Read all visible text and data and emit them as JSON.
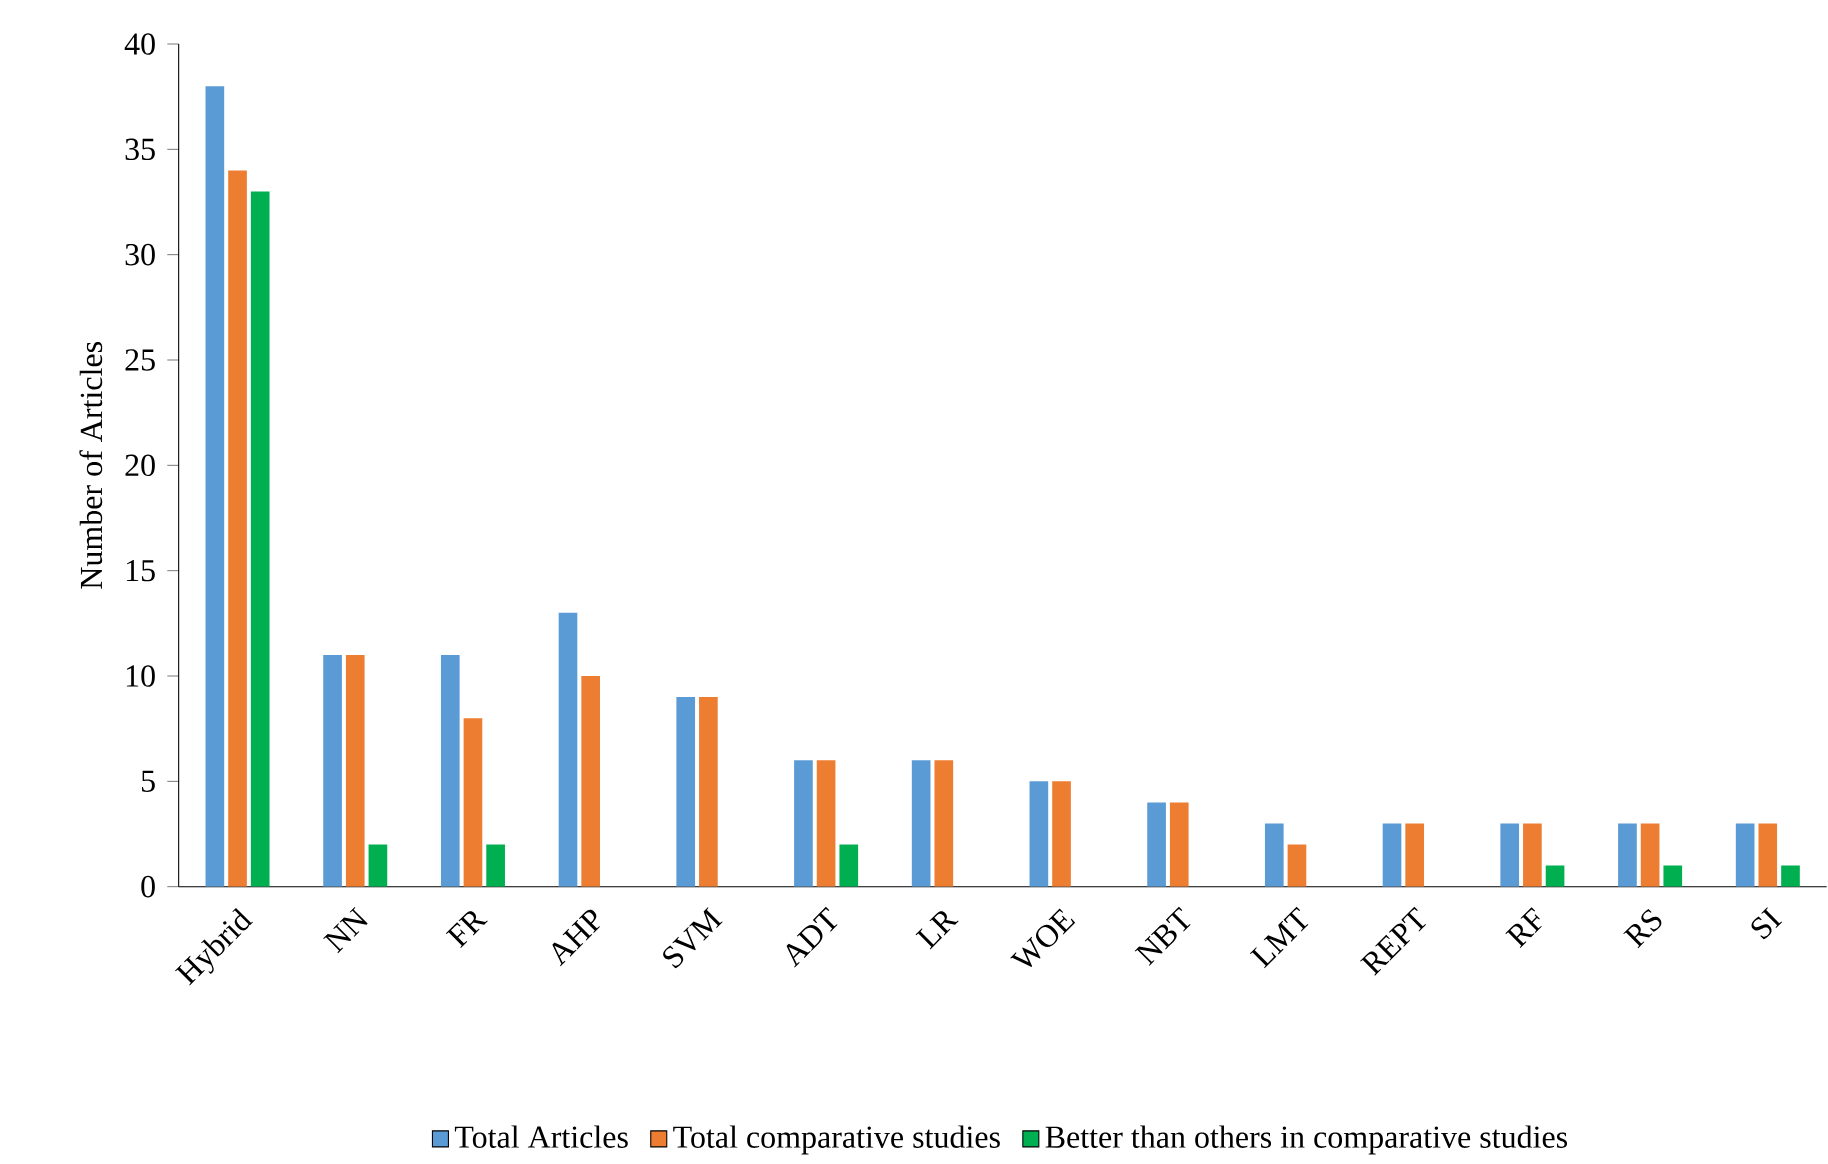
{
  "chart_data": {
    "type": "bar",
    "ylabel": "Number of Articles",
    "categories": [
      "Hybrid",
      "NN",
      "FR",
      "AHP",
      "SVM",
      "ADT",
      "LR",
      "WOE",
      "NBT",
      "LMT",
      "REPT",
      "RF",
      "RS",
      "SI"
    ],
    "series": [
      {
        "name": "Total Articles",
        "color": "#5b9bd5",
        "values": [
          38,
          11,
          11,
          13,
          9,
          6,
          6,
          5,
          4,
          3,
          3,
          3,
          3,
          3
        ]
      },
      {
        "name": "Total comparative studies",
        "color": "#ed7d31",
        "values": [
          34,
          11,
          8,
          10,
          9,
          6,
          6,
          5,
          4,
          2,
          3,
          3,
          3,
          3
        ]
      },
      {
        "name": "Better than others in comparative studies",
        "color": "#00b050",
        "values": [
          33,
          2,
          2,
          0,
          0,
          2,
          0,
          0,
          0,
          0,
          0,
          1,
          1,
          1
        ]
      }
    ],
    "ylim": [
      0,
      40
    ],
    "yticks": [
      0,
      5,
      10,
      15,
      20,
      25,
      30,
      35,
      40
    ],
    "grid": false,
    "legend": "bottom"
  }
}
